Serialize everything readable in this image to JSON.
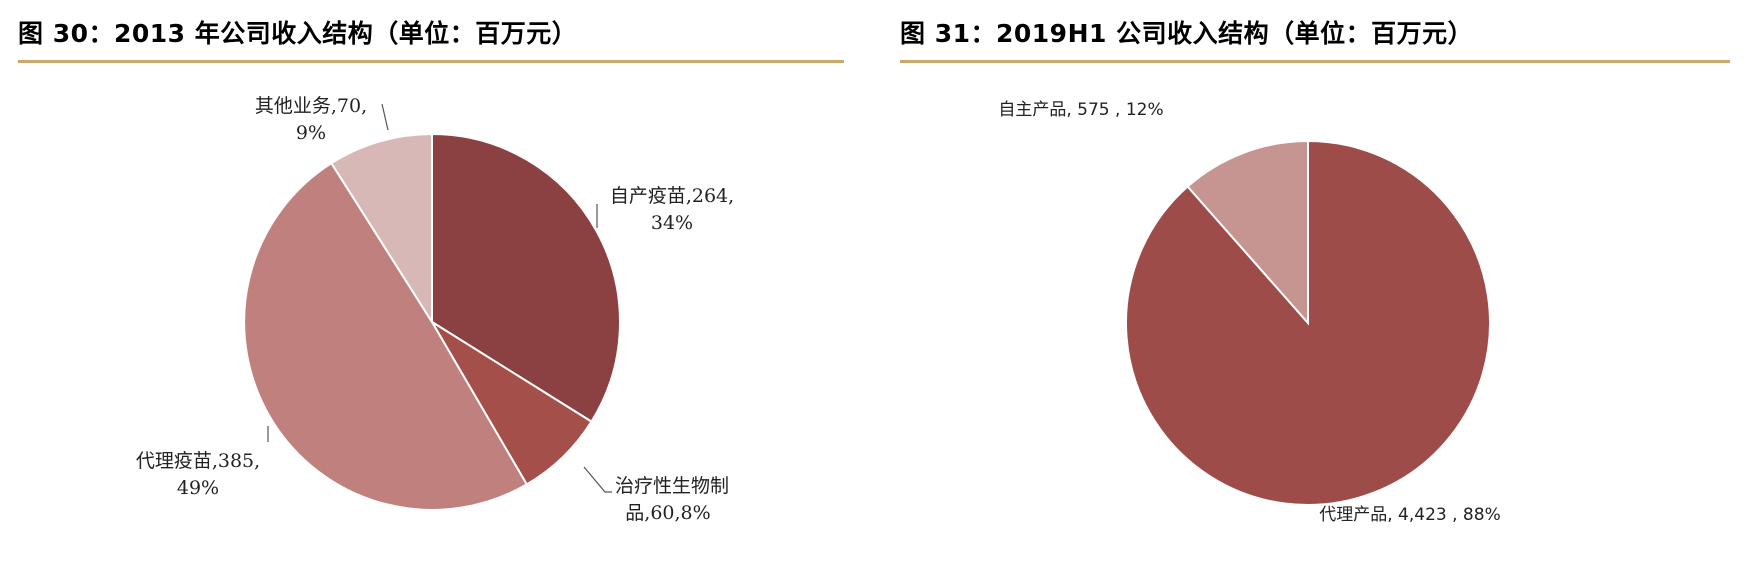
{
  "chart_data": [
    {
      "type": "pie",
      "title": "图 30：2013 年公司收入结构（单位：百万元）",
      "slices": [
        {
          "name": "自产疫苗",
          "value": 264,
          "percent": "34%",
          "color": "#8b4141",
          "label_line1": "自产疫苗,264,",
          "label_line2": "34%"
        },
        {
          "name": "治疗性生物制品",
          "value": 60,
          "percent": "8%",
          "color": "#a54f4a",
          "label_line1": "治疗性生物制",
          "label_line2": "品,60,8%"
        },
        {
          "name": "代理疫苗",
          "value": 385,
          "percent": "49%",
          "color": "#c0807d",
          "label_line1": "代理疫苗,385,",
          "label_line2": "49%"
        },
        {
          "name": "其他业务",
          "value": 70,
          "percent": "9%",
          "color": "#d8b8b6",
          "label_line1": "其他业务,70,",
          "label_line2": "9%"
        }
      ]
    },
    {
      "type": "pie",
      "title": "图 31：2019H1 公司收入结构（单位：百万元）",
      "slices": [
        {
          "name": "代理产品",
          "value": 4423,
          "percent": "88%",
          "color": "#9d4c49",
          "label_line1": "代理产品, 4,423 , 88%"
        },
        {
          "name": "自主产品",
          "value": 575,
          "percent": "12%",
          "color": "#c69592",
          "label_line1": "自主产品, 575 , 12%"
        }
      ]
    }
  ]
}
